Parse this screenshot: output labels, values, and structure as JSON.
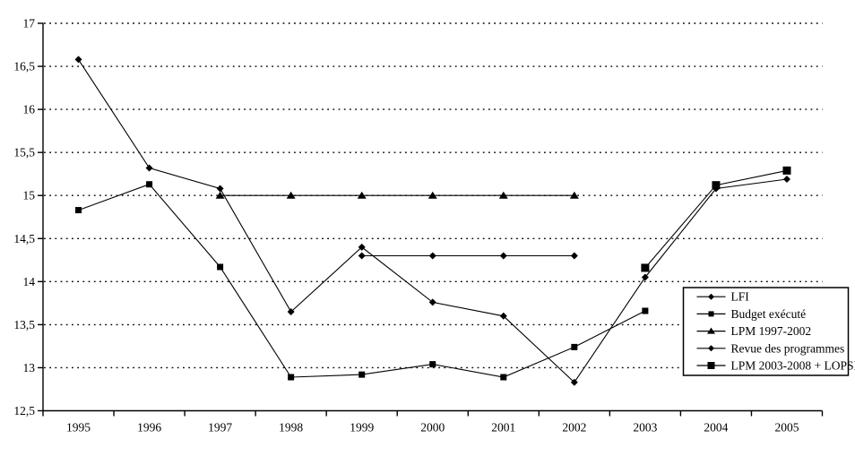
{
  "chart_data": {
    "type": "line",
    "title": "",
    "xlabel": "",
    "ylabel": "",
    "x_categories": [
      "1995",
      "1996",
      "1997",
      "1998",
      "1999",
      "2000",
      "2001",
      "2002",
      "2003",
      "2004",
      "2005"
    ],
    "y_axis": {
      "min": 12.5,
      "max": 17,
      "step": 0.5,
      "tick_labels_top_to_bottom": [
        "17",
        "16,5",
        "16",
        "15,5",
        "15",
        "14,5",
        "14",
        "13,5",
        "13",
        "12,5"
      ],
      "decimal_separator": "comma"
    },
    "grid": {
      "horizontal": true,
      "style": "dotted",
      "levels": [
        13,
        13.5,
        14,
        14.5,
        15,
        15.5,
        16,
        16.5,
        17
      ]
    },
    "legend": {
      "position": "right-lower-box",
      "border": true
    },
    "series": [
      {
        "name": "LFI",
        "marker": "diamond",
        "marker_size": 7,
        "values": [
          16.58,
          15.32,
          15.08,
          13.65,
          14.4,
          13.76,
          13.6,
          12.83,
          14.05,
          15.08,
          15.19
        ]
      },
      {
        "name": "Budget exécuté",
        "marker": "square",
        "marker_size": 7,
        "values": [
          14.83,
          15.13,
          14.17,
          12.89,
          12.92,
          13.04,
          12.89,
          13.24,
          13.66,
          null,
          null
        ]
      },
      {
        "name": "LPM 1997-2002",
        "marker": "triangle",
        "marker_size": 8,
        "values": [
          null,
          null,
          15.0,
          15.0,
          15.0,
          15.0,
          15.0,
          15.0,
          null,
          null,
          null
        ]
      },
      {
        "name": "Revue des programmes",
        "marker": "diamond",
        "marker_size": 7,
        "values": [
          null,
          null,
          null,
          null,
          14.3,
          14.3,
          14.3,
          14.3,
          null,
          null,
          null
        ]
      },
      {
        "name": "LPM 2003-2008 + LOPSI",
        "marker": "square",
        "marker_size": 9,
        "values": [
          null,
          null,
          null,
          null,
          null,
          null,
          null,
          null,
          14.16,
          15.12,
          15.29
        ]
      }
    ],
    "colors": {
      "foreground": "#000000",
      "background": "#ffffff"
    }
  }
}
